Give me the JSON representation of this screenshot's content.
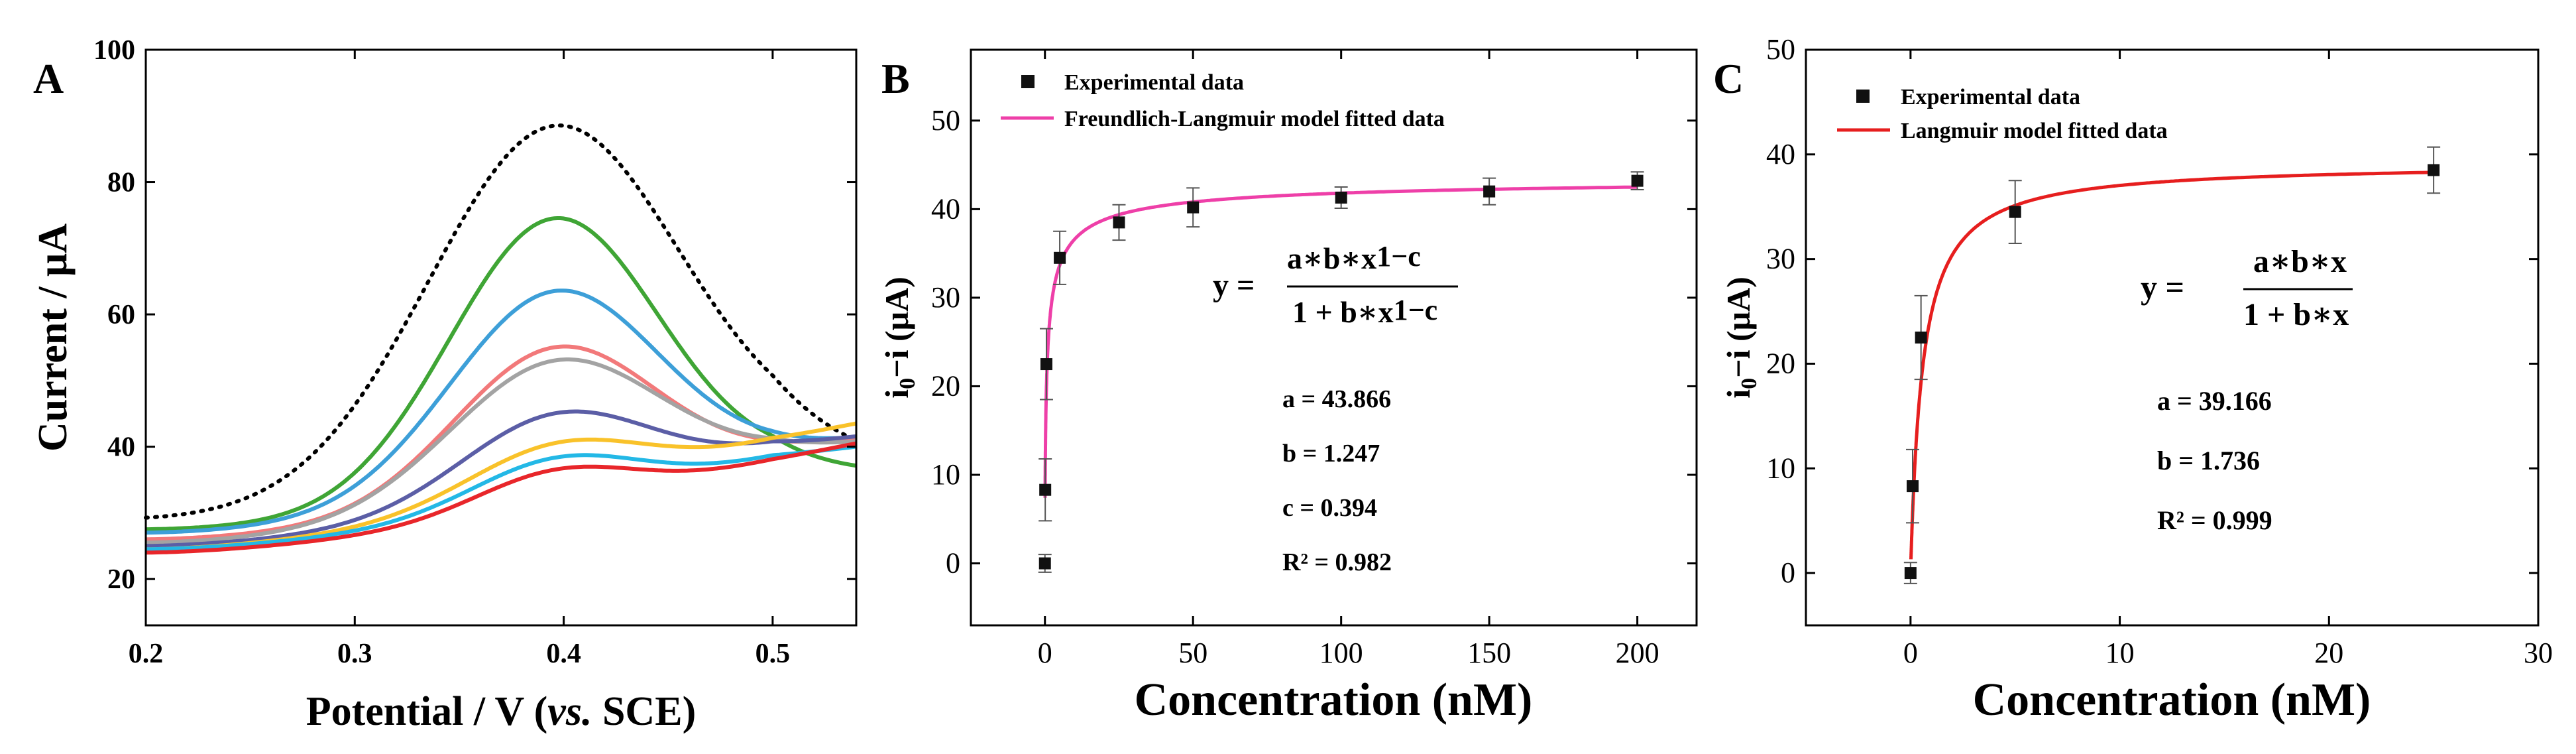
{
  "panels": {
    "A": {
      "letter": "A"
    },
    "B": {
      "letter": "B",
      "legend": {
        "marker_label": "Experimental data",
        "line_label": "Freundlich-Langmuir model fitted data"
      },
      "equation": {
        "lhs": "y =",
        "numerator": "a∗b∗x",
        "numerator_exp": "1−c",
        "denominator": "1 + b∗x",
        "denominator_exp": "1−c"
      },
      "params": [
        "a = 43.866",
        "b = 1.247",
        "c = 0.394",
        "R² = 0.982"
      ]
    },
    "C": {
      "letter": "C",
      "legend": {
        "marker_label": "Experimental data",
        "line_label": "Langmuir model fitted data"
      },
      "equation": {
        "lhs": "y =",
        "numerator": "a∗b∗x",
        "denominator": "1 + b∗x"
      },
      "params": [
        "a = 39.166",
        "b = 1.736",
        "R² = 0.999"
      ]
    }
  },
  "chart_data": [
    {
      "id": "A",
      "type": "line",
      "xlabel": "Potential / V (vs. SCE)",
      "xlabel_parts": [
        "Potential / V (",
        "vs.",
        " SCE)"
      ],
      "ylabel": "Current / μA",
      "xlim": [
        0.2,
        0.54
      ],
      "ylim": [
        13,
        100
      ],
      "xticks": [
        0.2,
        0.3,
        0.4,
        0.5
      ],
      "xtick_labels": [
        "0.2",
        "0.3",
        "0.4",
        "0.5"
      ],
      "yticks": [
        20,
        40,
        60,
        80,
        100
      ],
      "ytick_labels": [
        "20",
        "40",
        "60",
        "80",
        "100"
      ],
      "peak_x": 0.395,
      "series": [
        {
          "color": "#000000",
          "style": "dotted",
          "start": 29,
          "peak": 88.5,
          "sigma": 0.06,
          "end_at_05": 39,
          "end_at_054": 38
        },
        {
          "color": "#3fa535",
          "style": "solid",
          "start": 27.5,
          "peak": 74.5,
          "sigma": 0.05,
          "end_at_05": 37,
          "end_at_054": 36.5
        },
        {
          "color": "#3d9fd8",
          "style": "solid",
          "start": 27,
          "peak": 63.5,
          "sigma": 0.05,
          "end_at_05": 39,
          "end_at_054": 41
        },
        {
          "color": "#f2797a",
          "style": "solid",
          "start": 26,
          "peak": 55,
          "sigma": 0.048,
          "end_at_05": 39,
          "end_at_054": 41
        },
        {
          "color": "#a3a3a3",
          "style": "solid",
          "start": 25.5,
          "peak": 53,
          "sigma": 0.05,
          "end_at_05": 39,
          "end_at_054": 40.5
        },
        {
          "color": "#5b5ea6",
          "style": "solid",
          "start": 25,
          "peak": 45,
          "sigma": 0.045,
          "end_at_05": 40,
          "end_at_054": 41.5
        },
        {
          "color": "#f9c22a",
          "style": "solid",
          "start": 24.5,
          "peak": 40.5,
          "sigma": 0.042,
          "end_at_05": 41,
          "end_at_054": 43.5
        },
        {
          "color": "#23b8e6",
          "style": "solid",
          "start": 24.5,
          "peak": 38.3,
          "sigma": 0.04,
          "end_at_05": 38.5,
          "end_at_054": 40
        },
        {
          "color": "#e8262a",
          "style": "solid",
          "start": 24,
          "peak": 36.5,
          "sigma": 0.038,
          "end_at_05": 38,
          "end_at_054": 40.5
        }
      ]
    },
    {
      "id": "B",
      "type": "scatter",
      "xlabel": "Concentration (nM)",
      "ylabel": "i0−i (μA)",
      "ylabel_parts": [
        "i",
        "0",
        "−i (μA)"
      ],
      "xlim": [
        -25,
        220
      ],
      "ylim": [
        -7,
        58
      ],
      "xticks": [
        0,
        50,
        100,
        150,
        200
      ],
      "xtick_labels": [
        "0",
        "50",
        "100",
        "150",
        "200"
      ],
      "yticks": [
        0,
        10,
        20,
        30,
        40,
        50
      ],
      "ytick_labels": [
        "0",
        "10",
        "20",
        "30",
        "40",
        "50"
      ],
      "points": [
        {
          "x": 0,
          "y": 0,
          "err": 1
        },
        {
          "x": 0.1,
          "y": 8.3,
          "err": 3.5
        },
        {
          "x": 0.5,
          "y": 22.5,
          "err": 4
        },
        {
          "x": 5,
          "y": 34.5,
          "err": 3
        },
        {
          "x": 25,
          "y": 38.5,
          "err": 2
        },
        {
          "x": 50,
          "y": 40.2,
          "err": 2.2
        },
        {
          "x": 100,
          "y": 41.3,
          "err": 1.2
        },
        {
          "x": 150,
          "y": 42,
          "err": 1.5
        },
        {
          "x": 200,
          "y": 43.2,
          "err": 1
        }
      ],
      "fit": {
        "model": "freundlich-langmuir",
        "a": 43.866,
        "b": 1.247,
        "c": 0.394,
        "color": "#ee3fa8",
        "x_start": 0.05,
        "x_end": 200
      }
    },
    {
      "id": "C",
      "type": "scatter",
      "xlabel": "Concentration (nM)",
      "ylabel": "i0−i (μA)",
      "ylabel_parts": [
        "i",
        "0",
        "−i (μA)"
      ],
      "xlim": [
        -5,
        30
      ],
      "ylim": [
        -5,
        50
      ],
      "xticks": [
        0,
        10,
        20,
        30
      ],
      "xtick_labels": [
        "0",
        "10",
        "20",
        "30"
      ],
      "yticks": [
        0,
        10,
        20,
        30,
        40,
        50
      ],
      "ytick_labels": [
        "0",
        "10",
        "20",
        "30",
        "40",
        "50"
      ],
      "points": [
        {
          "x": 0,
          "y": 0,
          "err": 1
        },
        {
          "x": 0.1,
          "y": 8.3,
          "err": 3.5
        },
        {
          "x": 0.5,
          "y": 22.5,
          "err": 4
        },
        {
          "x": 5,
          "y": 34.5,
          "err": 3
        },
        {
          "x": 25,
          "y": 38.5,
          "err": 2.2
        }
      ],
      "fit": {
        "model": "langmuir",
        "a": 39.166,
        "b": 1.736,
        "color": "#e61e1e",
        "x_start": 0.02,
        "x_end": 25
      }
    }
  ]
}
